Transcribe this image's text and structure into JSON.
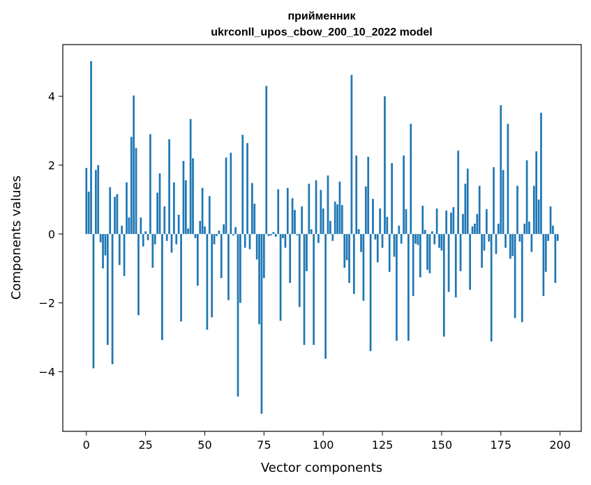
{
  "chart_data": {
    "type": "bar",
    "title_line1": "прийменник",
    "title_line2": "ukrconll_upos_cbow_200_10_2022 model",
    "xlabel": "Vector components",
    "ylabel": "Components values",
    "xlim": [
      -9.95,
      208.95
    ],
    "ylim": [
      -5.73,
      5.5
    ],
    "xticks": [
      0,
      25,
      50,
      75,
      100,
      125,
      150,
      175,
      200
    ],
    "xtick_labels": [
      "0",
      "25",
      "50",
      "75",
      "100",
      "125",
      "150",
      "175",
      "200"
    ],
    "yticks": [
      -4,
      -2,
      0,
      2,
      4
    ],
    "ytick_labels": [
      "−4",
      "−2",
      "0",
      "2",
      "4"
    ],
    "bar_color": "#1f77b4",
    "grid": false,
    "values": [
      1.92,
      1.23,
      5.02,
      -3.9,
      1.86,
      2.0,
      -0.24,
      -1.0,
      -0.62,
      -3.22,
      1.36,
      -3.78,
      1.08,
      1.16,
      -0.9,
      0.24,
      -1.22,
      1.5,
      0.48,
      2.82,
      4.02,
      2.5,
      -2.36,
      0.48,
      -0.36,
      0.08,
      -0.18,
      2.9,
      -0.98,
      -0.3,
      1.2,
      1.76,
      -3.08,
      0.8,
      -0.2,
      2.75,
      -0.54,
      1.5,
      -0.3,
      0.56,
      -2.54,
      2.12,
      1.56,
      0.16,
      3.34,
      2.2,
      -0.12,
      -1.5,
      0.38,
      1.34,
      0.22,
      -2.78,
      1.1,
      -2.42,
      -0.3,
      -0.06,
      0.1,
      -1.28,
      0.28,
      2.22,
      -1.92,
      2.36,
      -0.04,
      0.2,
      -4.72,
      -2.0,
      2.88,
      -0.4,
      2.64,
      -0.44,
      1.48,
      0.88,
      -0.74,
      -2.62,
      -5.22,
      -1.28,
      4.3,
      -0.06,
      -0.04,
      0.06,
      -0.08,
      1.3,
      -2.52,
      -0.12,
      -0.4,
      1.34,
      -1.42,
      1.04,
      0.7,
      -0.04,
      -2.12,
      0.8,
      -3.22,
      -1.08,
      1.46,
      0.14,
      -3.22,
      1.56,
      -0.26,
      1.28,
      0.74,
      -3.62,
      1.7,
      0.38,
      -0.2,
      0.94,
      0.86,
      1.52,
      0.84,
      -0.98,
      -0.76,
      -1.42,
      4.62,
      -1.74,
      2.28,
      0.14,
      -0.52,
      -1.94,
      1.38,
      2.24,
      -3.4,
      1.02,
      -0.16,
      -0.82,
      0.74,
      -0.4,
      4.0,
      0.5,
      -1.1,
      2.06,
      -0.66,
      -3.1,
      0.24,
      -0.28,
      2.28,
      0.72,
      -3.1,
      3.2,
      -1.8,
      -0.28,
      -0.32,
      -1.26,
      0.82,
      0.12,
      -1.04,
      -1.14,
      0.08,
      -0.3,
      0.74,
      -0.4,
      -0.48,
      -2.98,
      0.68,
      -1.68,
      0.62,
      0.78,
      -1.84,
      2.42,
      -1.08,
      0.58,
      1.46,
      1.9,
      -1.62,
      0.22,
      0.3,
      0.58,
      1.4,
      -0.98,
      -0.48,
      0.72,
      -0.22,
      -3.12,
      1.94,
      -0.58,
      0.3,
      3.74,
      1.86,
      -0.4,
      3.2,
      -0.72,
      -0.64,
      -2.44,
      1.4,
      -0.22,
      -2.56,
      0.3,
      2.14,
      0.36,
      -0.52,
      1.4,
      2.4,
      1.0,
      3.52,
      -1.8,
      -1.1,
      -0.2,
      0.8,
      0.24,
      -1.42,
      -0.2
    ]
  }
}
